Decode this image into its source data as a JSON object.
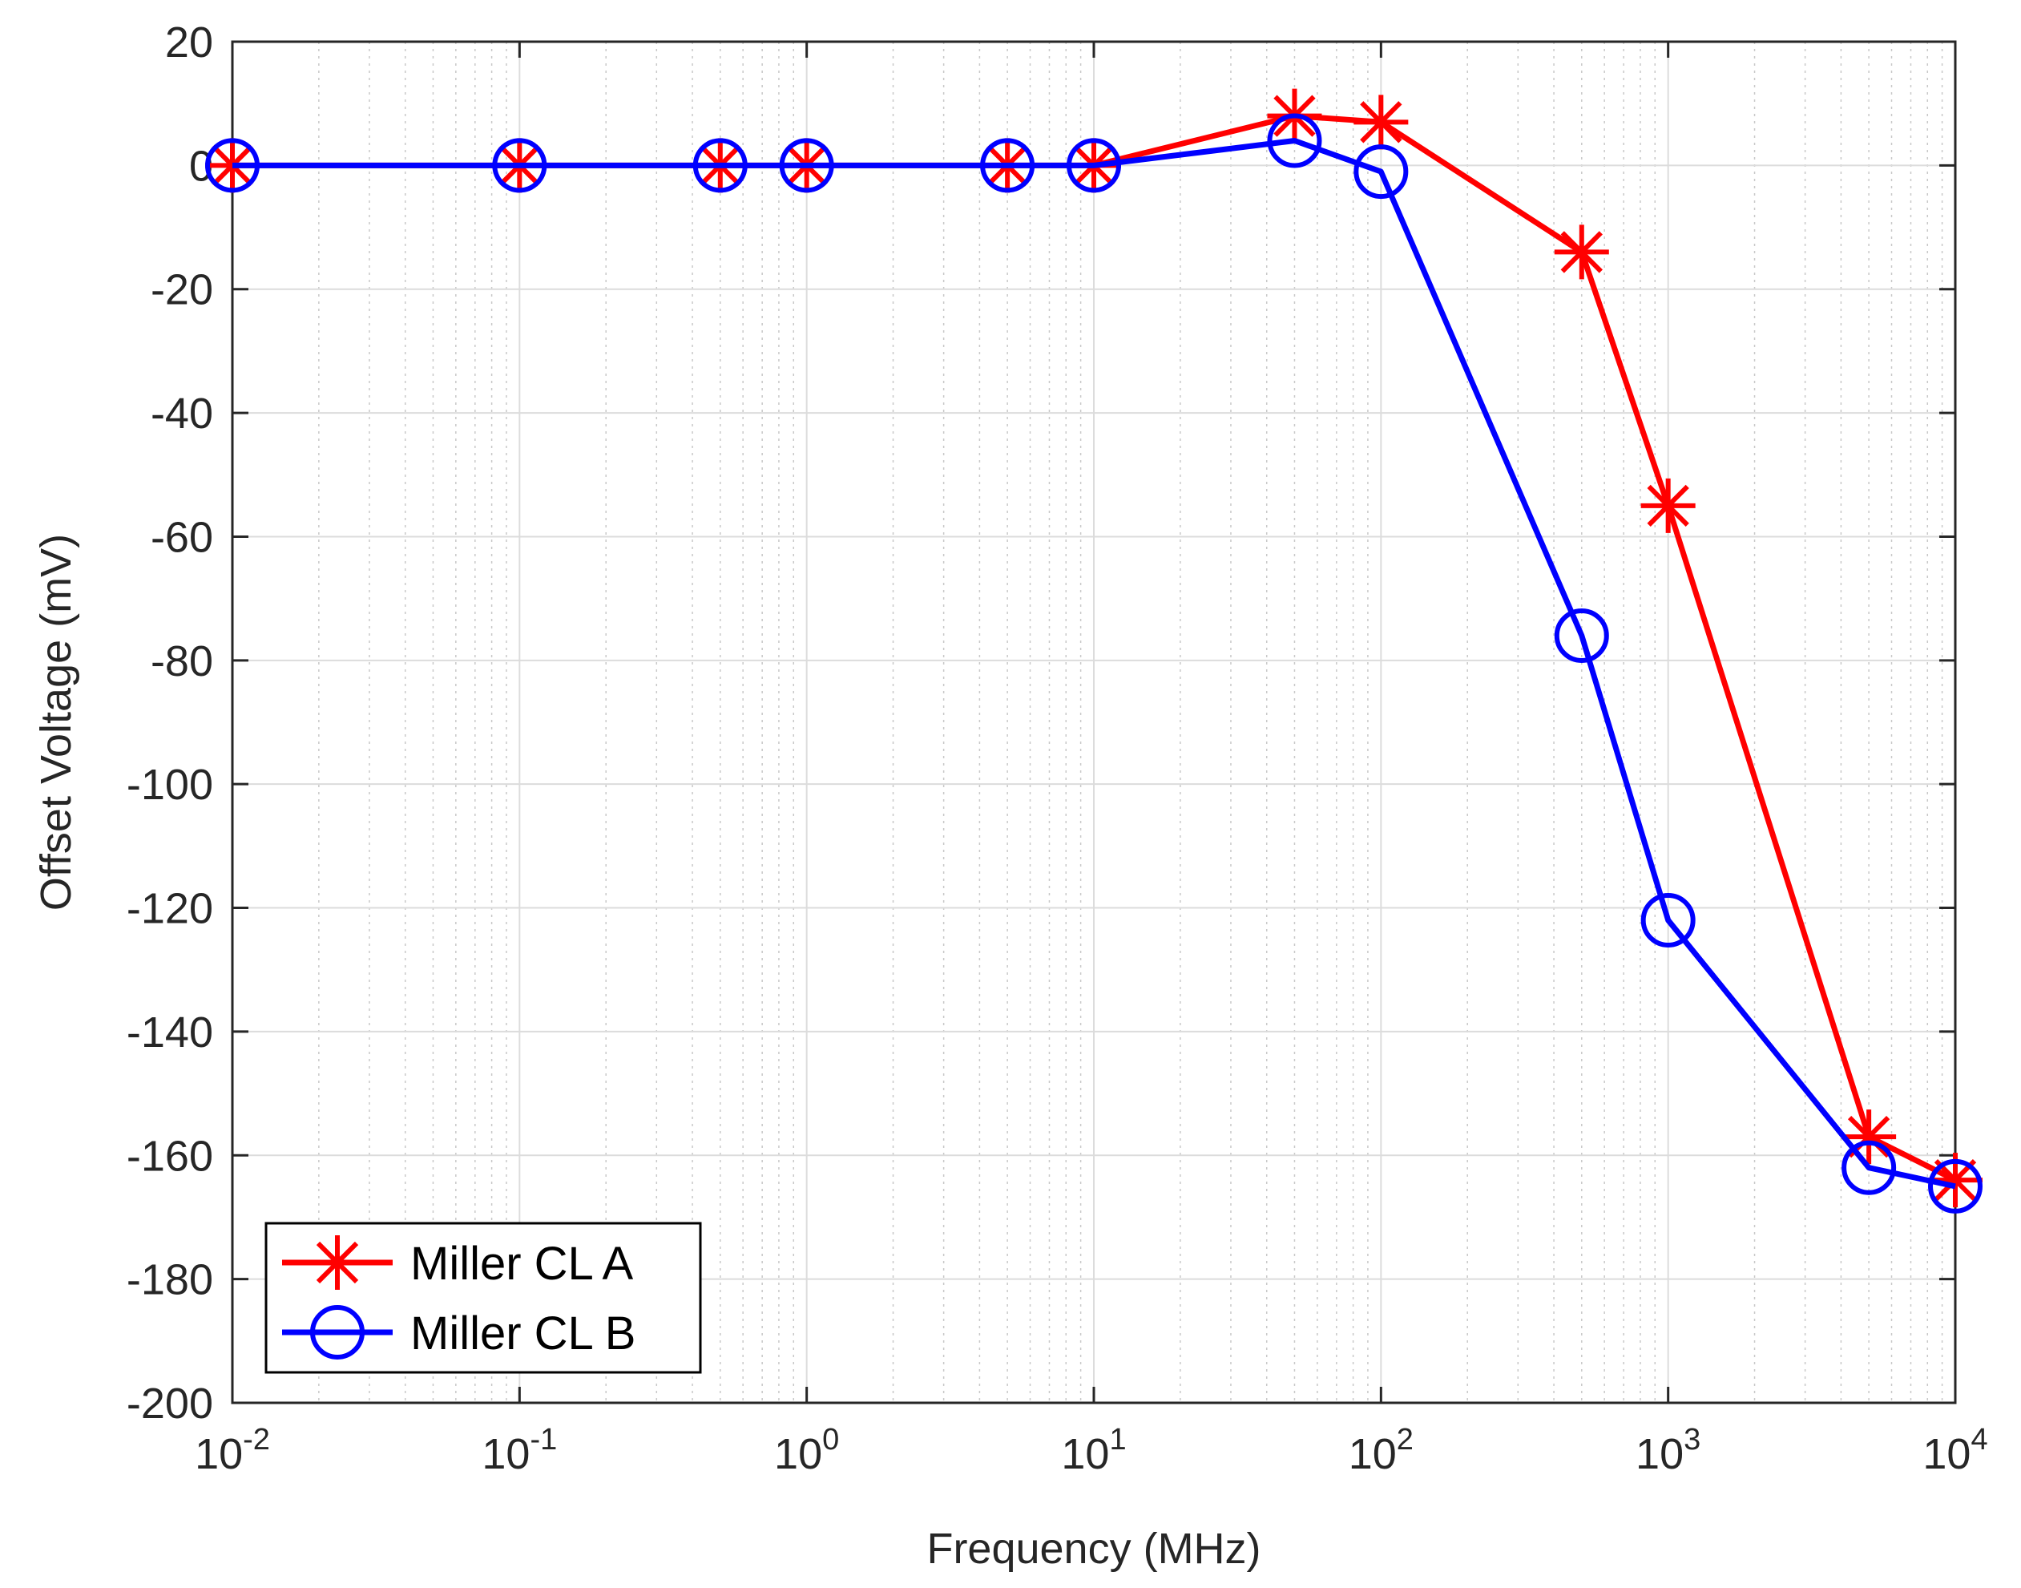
{
  "chart_data": {
    "type": "line",
    "xscale": "log",
    "xlabel": "Frequency (MHz)",
    "ylabel": "Offset Voltage (mV)",
    "xlim": [
      0.01,
      10000
    ],
    "ylim": [
      -200,
      20
    ],
    "x_ticks": [
      {
        "value": 0.01,
        "base": "10",
        "exp": "-2"
      },
      {
        "value": 0.1,
        "base": "10",
        "exp": "-1"
      },
      {
        "value": 1,
        "base": "10",
        "exp": "0"
      },
      {
        "value": 10,
        "base": "10",
        "exp": "1"
      },
      {
        "value": 100,
        "base": "10",
        "exp": "2"
      },
      {
        "value": 1000,
        "base": "10",
        "exp": "3"
      },
      {
        "value": 10000,
        "base": "10",
        "exp": "4"
      }
    ],
    "y_ticks": [
      {
        "value": 20,
        "label": "20"
      },
      {
        "value": 0,
        "label": "0"
      },
      {
        "value": -20,
        "label": "-20"
      },
      {
        "value": -40,
        "label": "-40"
      },
      {
        "value": -60,
        "label": "-60"
      },
      {
        "value": -80,
        "label": "-80"
      },
      {
        "value": -100,
        "label": "-100"
      },
      {
        "value": -120,
        "label": "-120"
      },
      {
        "value": -140,
        "label": "-140"
      },
      {
        "value": -160,
        "label": "-160"
      },
      {
        "value": -180,
        "label": "-180"
      },
      {
        "value": -200,
        "label": "-200"
      }
    ],
    "grid": true,
    "minor_grid": true,
    "legend_position": "bottom-left",
    "x": [
      0.01,
      0.1,
      0.5,
      1,
      5,
      10,
      50,
      100,
      500,
      1000,
      5000,
      10000
    ],
    "series": [
      {
        "name": "Miller CL A",
        "color": "#ff0000",
        "marker": "asterisk",
        "values": [
          0,
          0,
          0,
          0,
          0,
          0,
          8,
          7,
          -14,
          -55,
          -157,
          -164
        ]
      },
      {
        "name": "Miller CL B",
        "color": "#0000ff",
        "marker": "circle",
        "values": [
          0,
          0,
          0,
          0,
          0,
          0,
          4,
          -1,
          -76,
          -122,
          -162,
          -165
        ]
      }
    ]
  }
}
